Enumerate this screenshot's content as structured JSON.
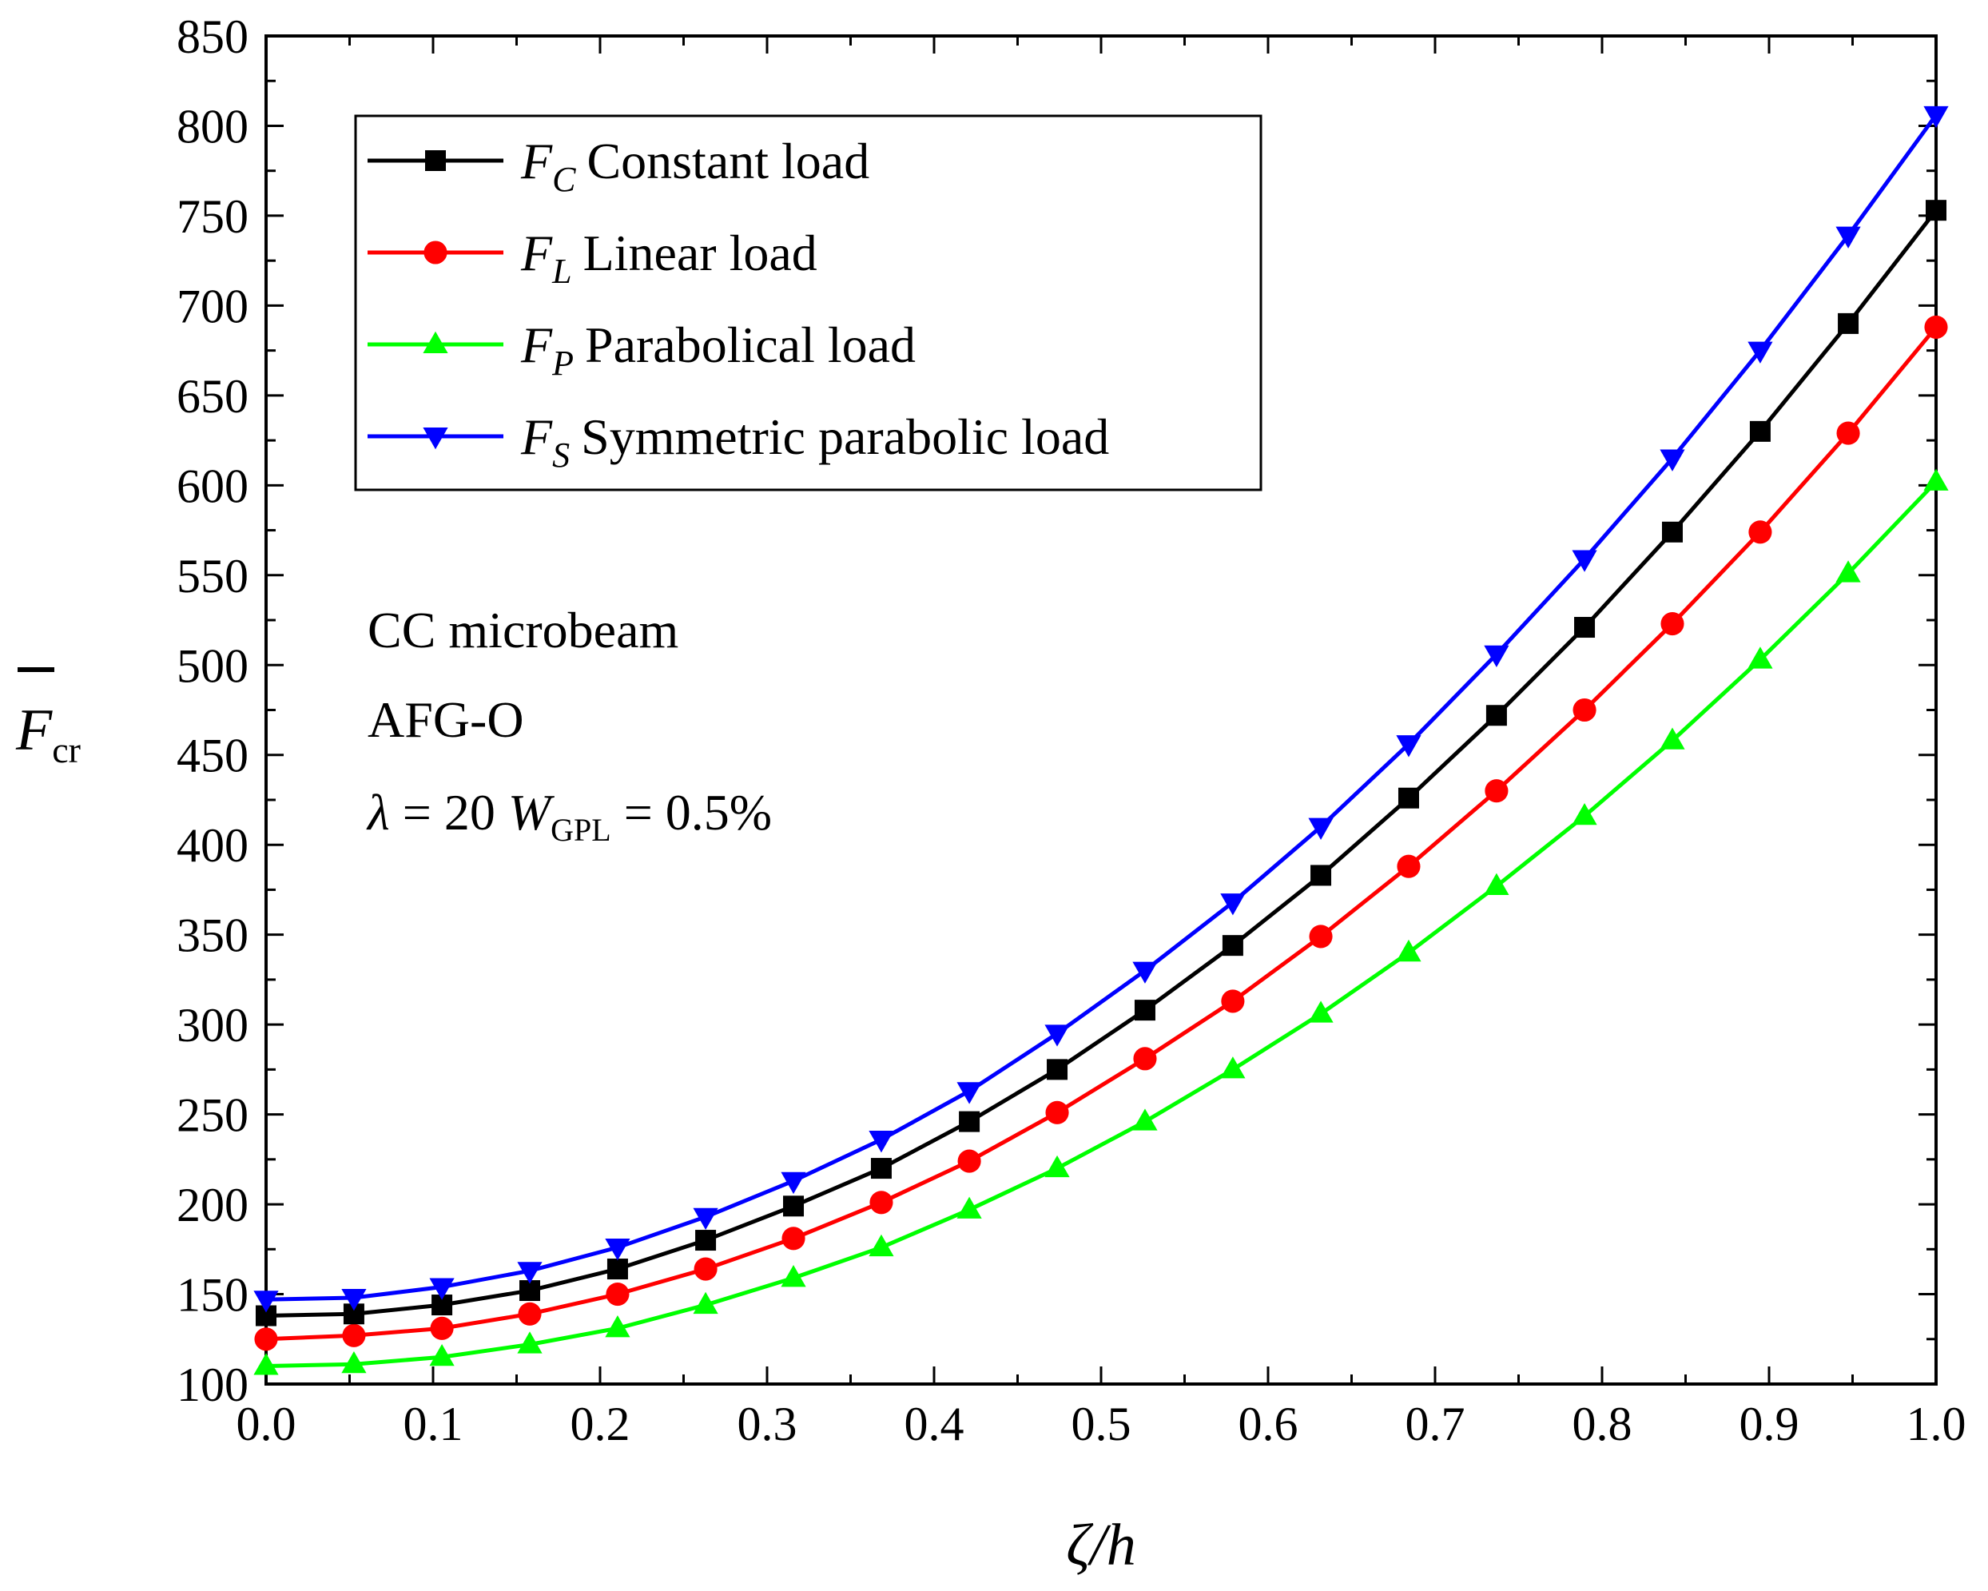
{
  "chart_data": {
    "type": "line",
    "title": "",
    "xlabel": "ζ/h",
    "ylabel": "F̄cr",
    "xlim": [
      0.0,
      1.0
    ],
    "ylim": [
      100,
      850
    ],
    "xticks": [
      "0.0",
      "0.1",
      "0.2",
      "0.3",
      "0.4",
      "0.5",
      "0.6",
      "0.7",
      "0.8",
      "0.9",
      "1.0"
    ],
    "yticks": [
      "100",
      "150",
      "200",
      "250",
      "300",
      "350",
      "400",
      "450",
      "500",
      "550",
      "600",
      "650",
      "700",
      "750",
      "800",
      "850"
    ],
    "x": [
      0.0,
      0.0526,
      0.1053,
      0.1579,
      0.2105,
      0.2632,
      0.3158,
      0.3684,
      0.4211,
      0.4737,
      0.5263,
      0.5789,
      0.6316,
      0.6842,
      0.7368,
      0.7895,
      0.8421,
      0.8947,
      0.9474,
      1.0
    ],
    "series": [
      {
        "name": "Constant load",
        "symbol": "F",
        "subscript": "C",
        "color": "#000000",
        "marker": "square",
        "values": [
          138,
          139,
          144,
          152,
          164,
          180,
          199,
          220,
          246,
          275,
          308,
          344,
          383,
          426,
          472,
          521,
          574,
          630,
          690,
          753
        ]
      },
      {
        "name": "Linear load",
        "symbol": "F",
        "subscript": "L",
        "color": "#ff0000",
        "marker": "circle",
        "values": [
          125,
          127,
          131,
          139,
          150,
          164,
          181,
          201,
          224,
          251,
          281,
          313,
          349,
          388,
          430,
          475,
          523,
          574,
          629,
          688
        ]
      },
      {
        "name": "Parabolical load",
        "symbol": "F",
        "subscript": "P",
        "color": "#00ff00",
        "marker": "triangle-up",
        "values": [
          110,
          111,
          115,
          122,
          131,
          144,
          159,
          176,
          197,
          220,
          246,
          275,
          306,
          340,
          377,
          416,
          458,
          503,
          551,
          602
        ]
      },
      {
        "name": "Symmetric parabolic load",
        "symbol": "F",
        "subscript": "S",
        "color": "#0000ff",
        "marker": "triangle-down",
        "values": [
          147,
          148,
          154,
          163,
          176,
          193,
          213,
          236,
          263,
          295,
          330,
          368,
          410,
          456,
          506,
          559,
          615,
          675,
          739,
          806
        ]
      }
    ],
    "legend_position": "top-left",
    "annotations": {
      "line1": "CC microbeam",
      "line2": "AFG-O",
      "lambda_symbol": "λ",
      "lambda_eq": " = 20 ",
      "w_symbol": "W",
      "w_sub": "GPL",
      "w_eq": " = 0.5%"
    },
    "axis_labels": {
      "x_symbol": "ζ",
      "x_rest": "/h",
      "y_symbol": "F",
      "y_sub": "cr"
    }
  }
}
